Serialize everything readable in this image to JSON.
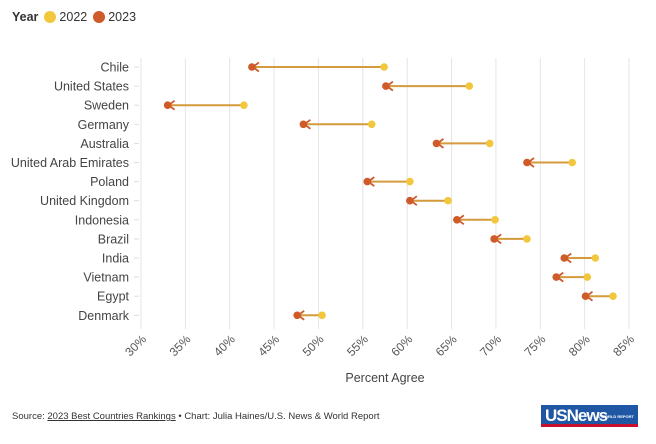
{
  "legend": {
    "title": "Year",
    "items": [
      {
        "label": "2022",
        "color": "#f2c73c"
      },
      {
        "label": "2023",
        "color": "#cf5a2a"
      }
    ]
  },
  "chart_data": {
    "type": "dumbbell",
    "title": "",
    "xlabel": "Percent Agree",
    "ylabel": "",
    "xlim": [
      30,
      85
    ],
    "xticks": [
      30,
      35,
      40,
      45,
      50,
      55,
      60,
      65,
      70,
      75,
      80,
      85
    ],
    "xtick_labels": [
      "30%",
      "35%",
      "40%",
      "45%",
      "50%",
      "55%",
      "60%",
      "65%",
      "70%",
      "75%",
      "80%",
      "85%"
    ],
    "grid": true,
    "legend_position": "top-left",
    "categories": [
      "Chile",
      "United States",
      "Sweden",
      "Germany",
      "Australia",
      "United Arab Emirates",
      "Poland",
      "United Kingdom",
      "Indonesia",
      "Brazil",
      "India",
      "Vietnam",
      "Egypt",
      "Denmark"
    ],
    "series": [
      {
        "name": "2022",
        "color": "#f2c73c",
        "values": [
          57.4,
          67.0,
          41.6,
          56.0,
          69.3,
          78.6,
          60.3,
          64.6,
          69.9,
          73.5,
          81.2,
          80.3,
          83.2,
          50.4
        ]
      },
      {
        "name": "2023",
        "color": "#cf5a2a",
        "values": [
          42.5,
          57.6,
          33.0,
          48.3,
          63.3,
          73.5,
          55.5,
          60.3,
          65.6,
          69.8,
          77.7,
          76.8,
          80.1,
          47.6
        ]
      }
    ],
    "connector_color": "#d49a3c"
  },
  "footer": {
    "source_prefix": "Source: ",
    "source_link": "2023 Best Countries Rankings",
    "credit": " • Chart: Julia Haines/U.S. News & World Report"
  },
  "logo": {
    "text": "USNews",
    "subtext": "& WORLD REPORT"
  }
}
